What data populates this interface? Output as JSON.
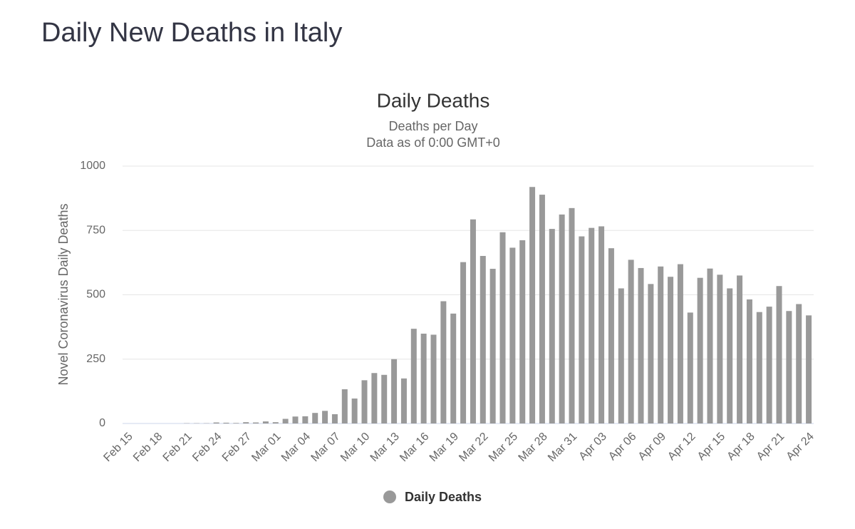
{
  "page_title": "Daily New Deaths in Italy",
  "chart_data": {
    "type": "bar",
    "title": "Daily Deaths",
    "subtitle": [
      "Deaths per Day",
      "Data as of 0:00 GMT+0"
    ],
    "ylabel": "Novel Coronavirus Daily Deaths",
    "categories": [
      "Feb 15",
      null,
      null,
      "Feb 18",
      null,
      null,
      "Feb 21",
      null,
      null,
      "Feb 24",
      null,
      null,
      "Feb 27",
      null,
      null,
      "Mar 01",
      null,
      null,
      "Mar 04",
      null,
      null,
      "Mar 07",
      null,
      null,
      "Mar 10",
      null,
      null,
      "Mar 13",
      null,
      null,
      "Mar 16",
      null,
      null,
      "Mar 19",
      null,
      null,
      "Mar 22",
      null,
      null,
      "Mar 25",
      null,
      null,
      "Mar 28",
      null,
      null,
      "Mar 31",
      null,
      null,
      "Apr 03",
      null,
      null,
      "Apr 06",
      null,
      null,
      "Apr 09",
      null,
      null,
      "Apr 12",
      null,
      null,
      "Apr 15",
      null,
      null,
      "Apr 18",
      null,
      null,
      "Apr 21",
      null,
      null,
      "Apr 24"
    ],
    "series": [
      {
        "name": "Daily Deaths",
        "color": "#999999",
        "values": [
          0,
          0,
          0,
          0,
          0,
          0,
          1,
          1,
          1,
          4,
          3,
          2,
          5,
          4,
          8,
          5,
          18,
          27,
          28,
          41,
          49,
          36,
          133,
          97,
          168,
          196,
          189,
          250,
          175,
          368,
          349,
          345,
          475,
          427,
          627,
          793,
          651,
          601,
          743,
          683,
          712,
          919,
          889,
          756,
          812,
          837,
          727,
          760,
          766,
          681,
          525,
          636,
          604,
          542,
          610,
          570,
          619,
          431,
          566,
          602,
          578,
          525,
          575,
          482,
          433,
          454,
          534,
          437,
          464,
          420
        ]
      }
    ],
    "ylim": [
      0,
      1000
    ],
    "yticks": [
      0,
      250,
      500,
      750,
      1000
    ],
    "grid": true,
    "legend": "bottom"
  }
}
